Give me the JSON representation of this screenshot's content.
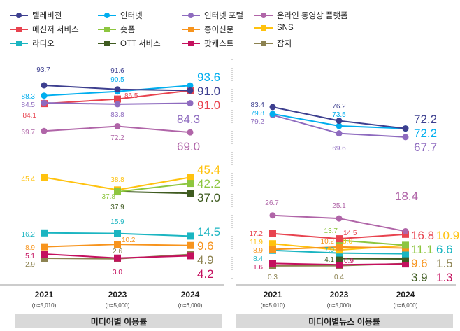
{
  "legend": [
    {
      "name": "텔레비전",
      "color": "#3d3f8f",
      "marker": "circle"
    },
    {
      "name": "인터넷",
      "color": "#00aeef",
      "marker": "circle"
    },
    {
      "name": "인터넷 포털",
      "color": "#8e6bbf",
      "marker": "circle"
    },
    {
      "name": "온라인 동영상 플랫폼",
      "color": "#b065a8",
      "marker": "circle"
    },
    {
      "name": "메신저 서비스",
      "color": "#e8434f",
      "marker": "square"
    },
    {
      "name": "숏폼",
      "color": "#8dc63f",
      "marker": "square"
    },
    {
      "name": "종이신문",
      "color": "#f7941d",
      "marker": "square"
    },
    {
      "name": "SNS",
      "color": "#ffc20e",
      "marker": "square"
    },
    {
      "name": "라디오",
      "color": "#1bb5c1",
      "marker": "square"
    },
    {
      "name": "OTT 서비스",
      "color": "#3f5b20",
      "marker": "square"
    },
    {
      "name": "팟캐스트",
      "color": "#c4105e",
      "marker": "square"
    },
    {
      "name": "잡지",
      "color": "#8c8250",
      "marker": "square"
    }
  ],
  "chart_data": [
    {
      "type": "line",
      "title": "미디어별 이용률",
      "categories": [
        "2021",
        "2023",
        "2024"
      ],
      "sample_sizes": [
        "(n=5,010)",
        "(n=5,000)",
        "(n=6,000)"
      ],
      "series": [
        {
          "name": "텔레비전",
          "values": [
            93.7,
            91.6,
            91.0
          ]
        },
        {
          "name": "인터넷",
          "values": [
            88.3,
            90.5,
            93.6
          ]
        },
        {
          "name": "인터넷 포털",
          "values": [
            84.5,
            83.8,
            84.3
          ]
        },
        {
          "name": "온라인 동영상 플랫폼",
          "values": [
            69.7,
            72.2,
            69.0
          ]
        },
        {
          "name": "메신저 서비스",
          "values": [
            84.1,
            86.5,
            91.0
          ]
        },
        {
          "name": "숏폼",
          "values": [
            null,
            37.8,
            42.2
          ]
        },
        {
          "name": "종이신문",
          "values": [
            8.9,
            10.2,
            9.6
          ]
        },
        {
          "name": "SNS",
          "values": [
            45.4,
            38.8,
            45.4
          ]
        },
        {
          "name": "라디오",
          "values": [
            16.2,
            15.9,
            14.5
          ]
        },
        {
          "name": "OTT 서비스",
          "values": [
            null,
            37.9,
            37.0
          ]
        },
        {
          "name": "팟캐스트",
          "values": [
            5.1,
            3.0,
            4.2
          ]
        },
        {
          "name": "잡지",
          "values": [
            2.9,
            2.6,
            4.9
          ]
        }
      ]
    },
    {
      "type": "line",
      "title": "미디어별뉴스 이용률",
      "categories": [
        "2021",
        "2023",
        "2024"
      ],
      "sample_sizes": [
        "(n=5,010)",
        "(n=5,000)",
        "(n=6,000)"
      ],
      "series": [
        {
          "name": "텔레비전",
          "values": [
            83.4,
            76.2,
            72.2
          ]
        },
        {
          "name": "인터넷",
          "values": [
            79.8,
            73.5,
            72.2
          ]
        },
        {
          "name": "인터넷 포털",
          "values": [
            79.2,
            69.6,
            67.7
          ]
        },
        {
          "name": "온라인 동영상 플랫폼",
          "values": [
            26.7,
            25.1,
            18.4
          ]
        },
        {
          "name": "메신저 서비스",
          "values": [
            17.2,
            14.5,
            16.8
          ]
        },
        {
          "name": "숏폼",
          "values": [
            null,
            13.7,
            11.1
          ]
        },
        {
          "name": "종이신문",
          "values": [
            8.9,
            10.2,
            9.6
          ]
        },
        {
          "name": "SNS",
          "values": [
            11.9,
            8.6,
            10.9
          ]
        },
        {
          "name": "라디오",
          "values": [
            8.4,
            7.0,
            6.6
          ]
        },
        {
          "name": "OTT 서비스",
          "values": [
            null,
            4.1,
            3.9
          ]
        },
        {
          "name": "팟캐스트",
          "values": [
            1.6,
            0.9,
            1.3
          ]
        },
        {
          "name": "잡지",
          "values": [
            0.3,
            0.4,
            1.5
          ]
        }
      ]
    }
  ]
}
